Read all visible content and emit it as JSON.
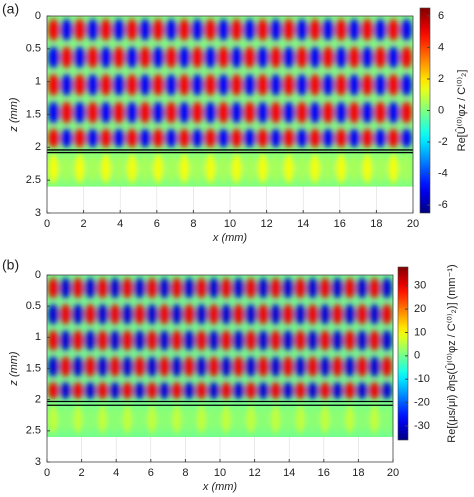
{
  "chart_data": [
    {
      "type": "heatmap",
      "panel_label": "(a)",
      "xlabel": "x (mm)",
      "ylabel": "z (mm)",
      "xlim": [
        0,
        20
      ],
      "xticks": [
        0,
        2,
        4,
        6,
        8,
        10,
        12,
        14,
        16,
        18,
        20
      ],
      "ylim": [
        0,
        3
      ],
      "y_inverted": true,
      "yticks": [
        0,
        0.5,
        1,
        1.5,
        2,
        2.5,
        3
      ],
      "grid": true,
      "colormap": "jet",
      "clim": [
        -6.5,
        6.5
      ],
      "cticks": [
        -6,
        -4,
        -2,
        0,
        2,
        4,
        6
      ],
      "colorbar_label": "Re[Û⁽⁰⁾φz / C⁽⁰⁾₂]",
      "z_edges": [
        0,
        0.42,
        0.84,
        1.26,
        1.68,
        2.04,
        2.6
      ],
      "interface_lines": [
        2.04,
        2.08
      ],
      "values": [
        [
          5,
          -5,
          5,
          -5,
          5,
          -5,
          5,
          -5,
          5,
          -5,
          5,
          -5,
          5,
          -5,
          5,
          -5,
          5,
          -5,
          5,
          -5,
          5,
          -5,
          5,
          -5,
          5,
          -5,
          5,
          -5
        ],
        [
          -5,
          5,
          -5,
          5,
          -5,
          5,
          -5,
          5,
          -5,
          5,
          -5,
          5,
          -5,
          5,
          -5,
          5,
          -5,
          5,
          -5,
          5,
          -5,
          5,
          -5,
          5,
          -5,
          5,
          -5,
          5
        ],
        [
          5,
          -5,
          5,
          -5,
          5,
          -5,
          5,
          -5,
          5,
          -5,
          5,
          -5,
          5,
          -5,
          5,
          -5,
          5,
          -5,
          5,
          -5,
          5,
          -5,
          5,
          -5,
          5,
          -5,
          5,
          -5
        ],
        [
          -5,
          5,
          -5,
          5,
          -5,
          5,
          -5,
          5,
          -5,
          5,
          -5,
          5,
          -5,
          5,
          -5,
          5,
          -5,
          5,
          -5,
          5,
          -5,
          5,
          -5,
          5,
          -5,
          5,
          -5,
          5
        ],
        [
          5,
          -5,
          5,
          -5,
          5,
          -5,
          5,
          -5,
          5,
          -5,
          5,
          -5,
          5,
          -5,
          5,
          -5,
          5,
          -5,
          5,
          -5,
          5,
          -5,
          5,
          -5,
          5,
          -5,
          5,
          -5
        ],
        [
          1.5,
          0.5,
          1.5,
          0.5,
          1.5,
          0.5,
          1.5,
          0.5,
          1.5,
          0.5,
          1.5,
          0.5,
          1.5,
          0.5,
          1.5,
          0.5,
          1.5,
          0.5,
          1.5,
          0.5,
          1.5,
          0.5,
          1.5,
          0.5,
          1.5,
          0.5,
          1.5,
          0.5
        ]
      ]
    },
    {
      "type": "heatmap",
      "panel_label": "(b)",
      "xlabel": "x (mm)",
      "ylabel": "z (mm)",
      "xlim": [
        0,
        20
      ],
      "xticks": [
        0,
        2,
        4,
        6,
        8,
        10,
        12,
        14,
        16,
        18,
        20
      ],
      "ylim": [
        0,
        3
      ],
      "y_inverted": true,
      "yticks": [
        0,
        0.5,
        1,
        1.5,
        2,
        2.5,
        3
      ],
      "grid": true,
      "colormap": "jet",
      "clim": [
        -36,
        38
      ],
      "cticks": [
        -30,
        -20,
        -10,
        0,
        10,
        20,
        30
      ],
      "colorbar_label": "Re[(μs/μi) ∂ηs(Û⁽⁰⁾φz / C⁽⁰⁾₂)] (mm⁻¹)",
      "z_edges": [
        0,
        0.42,
        0.84,
        1.26,
        1.68,
        2.03,
        2.6
      ],
      "interface_lines": [
        2.03,
        2.09
      ],
      "values": [
        [
          30,
          -30,
          30,
          -30,
          30,
          -30,
          30,
          -30,
          30,
          -30,
          30,
          -30,
          30,
          -30,
          30,
          -30,
          30,
          -30,
          30,
          -30,
          30,
          -30,
          30,
          -30,
          30,
          -30,
          30,
          -30
        ],
        [
          -30,
          30,
          -30,
          30,
          -30,
          30,
          -30,
          30,
          -30,
          30,
          -30,
          30,
          -30,
          30,
          -30,
          30,
          -30,
          30,
          -30,
          30,
          -30,
          30,
          -30,
          30,
          -30,
          30,
          -30,
          30
        ],
        [
          30,
          -30,
          30,
          -30,
          30,
          -30,
          30,
          -30,
          30,
          -30,
          30,
          -30,
          30,
          -30,
          30,
          -30,
          30,
          -30,
          30,
          -30,
          30,
          -30,
          30,
          -30,
          30,
          -30,
          30,
          -30
        ],
        [
          -30,
          30,
          -30,
          30,
          -30,
          30,
          -30,
          30,
          -30,
          30,
          -30,
          30,
          -30,
          30,
          -30,
          30,
          -30,
          30,
          -30,
          30,
          -30,
          30,
          -30,
          30,
          -30,
          30,
          -30,
          30
        ],
        [
          30,
          -30,
          30,
          -30,
          30,
          -30,
          30,
          -30,
          30,
          -30,
          30,
          -30,
          30,
          -30,
          30,
          -30,
          30,
          -30,
          30,
          -30,
          30,
          -30,
          30,
          -30,
          30,
          -30,
          30,
          -30
        ],
        [
          6,
          2,
          6,
          2,
          6,
          2,
          6,
          2,
          6,
          2,
          6,
          2,
          6,
          2,
          6,
          2,
          6,
          2,
          6,
          2,
          6,
          2,
          6,
          2,
          6,
          2,
          6,
          2
        ]
      ]
    }
  ]
}
